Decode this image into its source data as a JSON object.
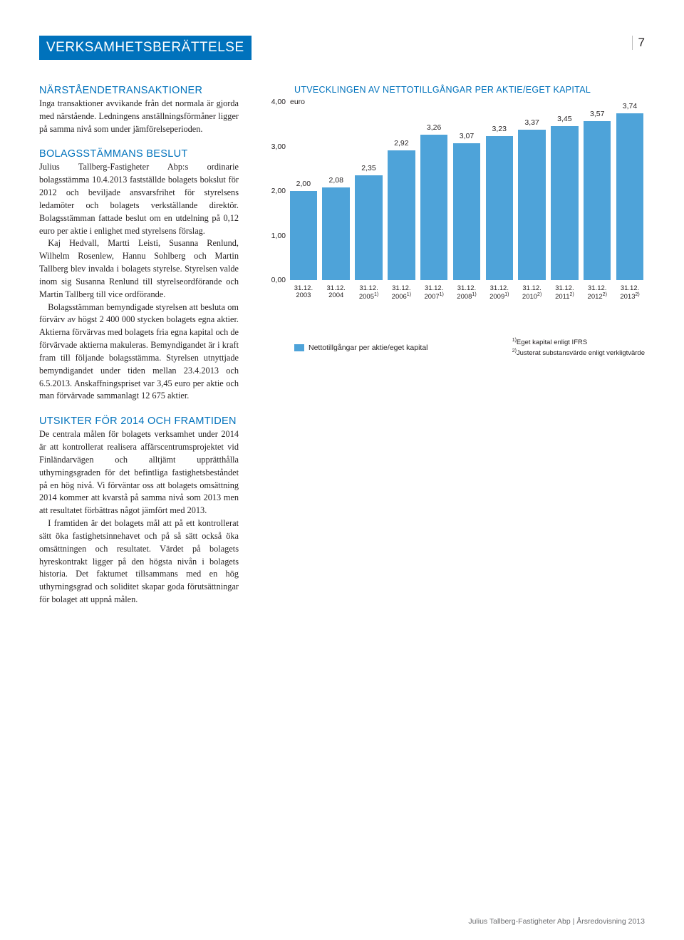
{
  "header": {
    "title": "VERKSAMHETSBERÄTTELSE",
    "page_number": "7"
  },
  "sections": {
    "narstaende": {
      "heading": "NÄRSTÅENDETRANSAKTIONER",
      "p1": "Inga transaktioner avvikande från det normala är gjorda med närstående. Ledningens anställningsförmåner ligger på samma nivå som under jämförelseperioden."
    },
    "beslut": {
      "heading": "BOLAGSSTÄMMANS BESLUT",
      "p1": "Julius Tallberg-Fastigheter Abp:s ordinarie bolagsstämma 10.4.2013 fastställde bolagets bokslut för 2012 och beviljade ansvarsfrihet för styrelsens ledamöter och bolagets verkställande direktör. Bolagsstämman fattade beslut om en utdelning på 0,12 euro per aktie i enlighet med styrelsens förslag.",
      "p2": "Kaj Hedvall, Martti Leisti, Susanna Renlund, Wilhelm Rosenlew, Hannu Sohlberg och Martin Tallberg blev invalda i bolagets styrelse. Styrelsen valde inom sig Susanna Renlund till styrelseordförande och Martin Tallberg till vice ordförande.",
      "p3": "Bolagsstämman bemyndigade styrelsen att besluta om förvärv av högst 2 400 000 stycken bolagets egna aktier. Aktierna förvärvas med bolagets fria egna kapital och de förvärvade aktierna makuleras. Bemyndigandet är i kraft fram till följande bolagsstämma. Styrelsen utnyttjade bemyndigandet under tiden mellan 23.4.2013 och 6.5.2013. Anskaffningspriset var 3,45 euro per aktie och man förvärvade sammanlagt 12 675 aktier."
    },
    "utsikter": {
      "heading": "UTSIKTER FÖR 2014 OCH FRAMTIDEN",
      "p1": "De centrala målen för bolagets verksamhet under 2014 är att kontrollerat realisera affärscentrumsprojektet vid Finländarvägen och alltjämt upprätthålla uthyrningsgraden för det befintliga fastighetsbeståndet på en hög nivå. Vi förväntar oss att bolagets omsättning 2014 kommer att kvarstå på samma nivå som 2013 men att resultatet förbättras något jämfört med 2013.",
      "p2": "I framtiden är det bolagets mål att på ett kontrollerat sätt öka fastighetsinnehavet och på så sätt också öka omsättningen och resultatet. Värdet på bolagets hyreskontrakt ligger på den högsta nivån i bolagets historia. Det faktumet tillsammans med en hög uthyrningsgrad och soliditet skapar goda förutsättningar för bolaget att uppnå målen."
    }
  },
  "chart": {
    "title": "UTVECKLINGEN AV NETTOTILLGÅNGAR PER AKTIE/EGET KAPITAL",
    "y_unit": "euro",
    "y_max": 4.0,
    "y_ticks": [
      "4,00",
      "3,00",
      "2,00",
      "1,00",
      "0,00"
    ],
    "bar_color": "#4ea3d9",
    "bars": [
      {
        "label": "2,00",
        "value": 2.0,
        "xlabel": "31.12.<br>2003"
      },
      {
        "label": "2,08",
        "value": 2.08,
        "xlabel": "31.12.<br>2004"
      },
      {
        "label": "2,35",
        "value": 2.35,
        "xlabel": "31.12.<br>2005<sup>1)</sup>"
      },
      {
        "label": "2,92",
        "value": 2.92,
        "xlabel": "31.12.<br>2006<sup>1)</sup>"
      },
      {
        "label": "3,26",
        "value": 3.26,
        "xlabel": "31.12.<br>2007<sup>1)</sup>"
      },
      {
        "label": "3,07",
        "value": 3.07,
        "xlabel": "31.12.<br>2008<sup>1)</sup>"
      },
      {
        "label": "3,23",
        "value": 3.23,
        "xlabel": "31.12.<br>2009<sup>1)</sup>"
      },
      {
        "label": "3,37",
        "value": 3.37,
        "xlabel": "31.12.<br>2010<sup>2)</sup>"
      },
      {
        "label": "3,45",
        "value": 3.45,
        "xlabel": "31.12.<br>2011<sup>2)</sup>"
      },
      {
        "label": "3,57",
        "value": 3.57,
        "xlabel": "31.12.<br>2012<sup>2)</sup>"
      },
      {
        "label": "3,74",
        "value": 3.74,
        "xlabel": "31.12.<br>2013<sup>2)</sup>"
      }
    ],
    "legend": {
      "series": "Nettotillgångar per aktie/eget kapital",
      "note1": "Eget kapital enligt IFRS",
      "note2": "Justerat substansvärde enligt verkligtvärde"
    }
  },
  "footer": "Julius Tallberg-Fastigheter Abp | Årsredovisning 2013"
}
